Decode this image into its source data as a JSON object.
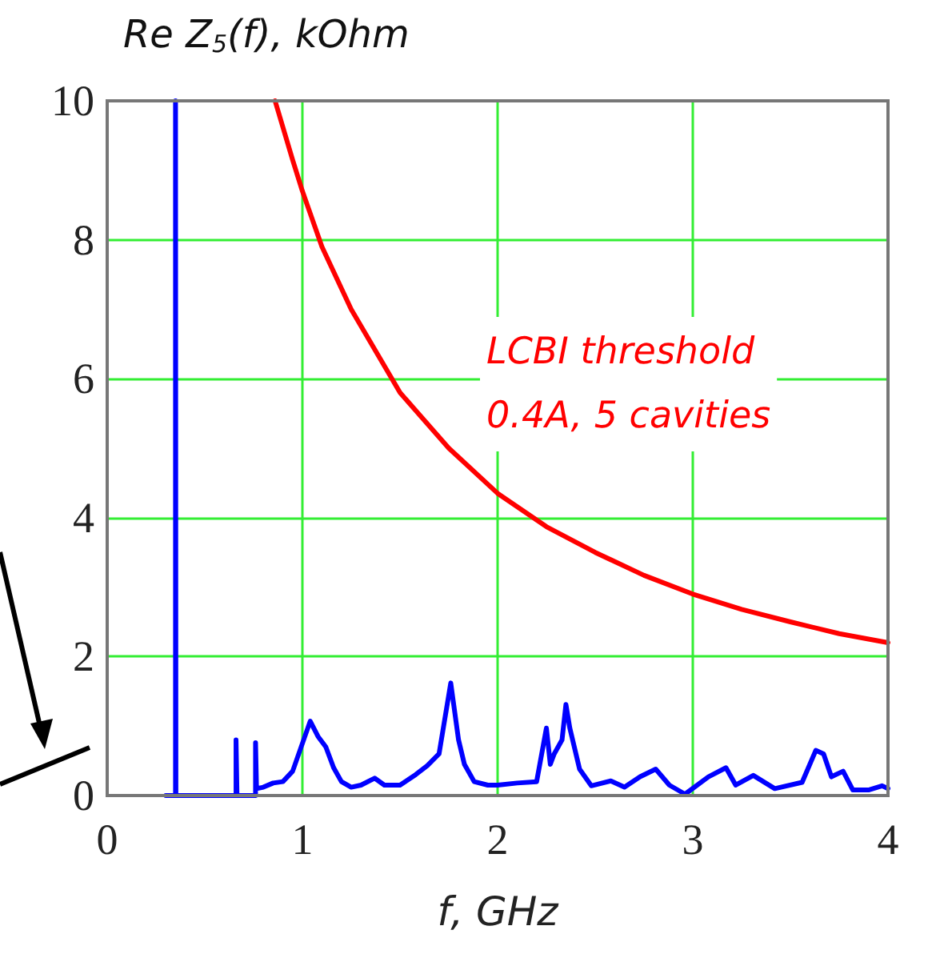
{
  "chart_data": {
    "type": "line",
    "ylabel": "Re Z$_{5}$(f), kOhm",
    "xlabel": "f, GHz",
    "xlim": [
      0,
      4
    ],
    "xticks": [
      0,
      1,
      2,
      3,
      4
    ],
    "ylim": [
      0,
      10
    ],
    "yticks": [
      0,
      2,
      4,
      6,
      8,
      10
    ],
    "grid": true,
    "marker": "none",
    "line_style": "solid",
    "annotations": [
      "LCBI threshold\n0.4A, 5 cavities"
    ],
    "series": [
      {
        "color": "#0000ff",
        "x": [
          0.3,
          0.35,
          0.35,
          0.352,
          0.352,
          0.66,
          0.66,
          0.665,
          0.665,
          0.76,
          0.76,
          0.765,
          0.8,
          0.85,
          0.9,
          0.95,
          1.04,
          1.08,
          1.12,
          1.16,
          1.2,
          1.25,
          1.3,
          1.37,
          1.42,
          1.5,
          1.58,
          1.64,
          1.7,
          1.76,
          1.8,
          1.83,
          1.88,
          1.95,
          2.0,
          2.1,
          2.2,
          2.25,
          2.27,
          2.29,
          2.33,
          2.35,
          2.37,
          2.42,
          2.48,
          2.58,
          2.65,
          2.73,
          2.81,
          2.88,
          2.96,
          3.08,
          3.17,
          3.22,
          3.31,
          3.42,
          3.56,
          3.63,
          3.67,
          3.71,
          3.77,
          3.82,
          3.9,
          3.97,
          4.0
        ],
        "values": [
          0,
          0,
          10,
          10,
          0,
          0,
          0.8,
          0.8,
          0,
          0,
          0.76,
          0.1,
          0.12,
          0.18,
          0.2,
          0.35,
          1.07,
          0.85,
          0.7,
          0.4,
          0.2,
          0.12,
          0.15,
          0.25,
          0.15,
          0.15,
          0.3,
          0.43,
          0.6,
          1.62,
          0.8,
          0.45,
          0.2,
          0.15,
          0.15,
          0.18,
          0.2,
          0.97,
          0.45,
          0.6,
          0.8,
          1.31,
          0.97,
          0.38,
          0.14,
          0.21,
          0.12,
          0.27,
          0.38,
          0.15,
          0.02,
          0.27,
          0.4,
          0.15,
          0.29,
          0.1,
          0.19,
          0.65,
          0.6,
          0.27,
          0.35,
          0.08,
          0.08,
          0.14,
          0.1
        ]
      },
      {
        "color": "#ff0000",
        "x": [
          0.86,
          0.95,
          1.0,
          1.1,
          1.25,
          1.5,
          1.75,
          2.0,
          2.25,
          2.5,
          2.75,
          3.0,
          3.25,
          3.5,
          3.75,
          4.0
        ],
        "values": [
          10,
          9.15,
          8.7,
          7.9,
          7.0,
          5.8,
          5.0,
          4.35,
          3.87,
          3.5,
          3.17,
          2.9,
          2.68,
          2.5,
          2.33,
          2.2
        ]
      }
    ]
  }
}
